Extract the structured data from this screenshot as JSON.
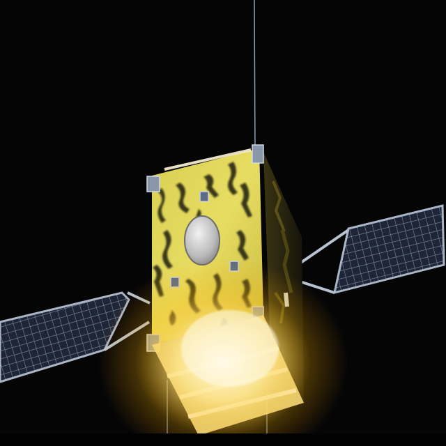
{
  "scene": {
    "subject": "satellite",
    "colors": {
      "space": "#050506",
      "mli_foil": "#e8d84a",
      "foil_dark": "#2a2610",
      "solar_cell": "#1c2436",
      "panel_frame": "#9aa8bc",
      "glow": "#fff1b8"
    },
    "icons": {
      "satellite": "satellite-icon",
      "solar_panel": "solar-panel-icon",
      "sensor_port": "sensor-port-icon"
    }
  }
}
